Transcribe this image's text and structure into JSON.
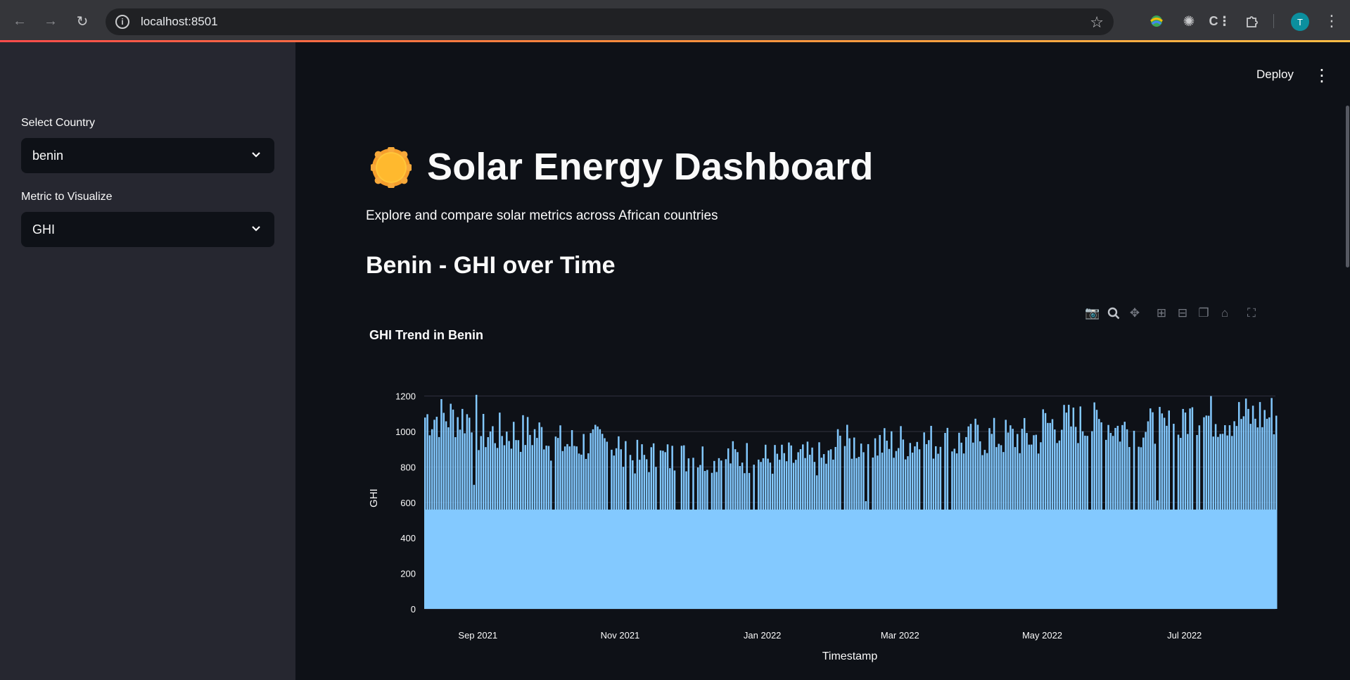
{
  "browser": {
    "url": "localhost:8501",
    "profile_initial": "T",
    "icons": [
      "back-arrow-icon",
      "forward-arrow-icon",
      "reload-icon",
      "info-icon",
      "star-icon",
      "extension-icons",
      "puzzle-icon",
      "menu-icon"
    ]
  },
  "app": {
    "deploy_label": "Deploy",
    "menu_glyph": "⋮"
  },
  "sidebar": {
    "country_label": "Select Country",
    "country_value": "benin",
    "metric_label": "Metric to Visualize",
    "metric_value": "GHI"
  },
  "main": {
    "title": "Solar Energy Dashboard",
    "subtitle": "Explore and compare solar metrics across African countries",
    "section_heading": "Benin - GHI over Time"
  },
  "colors": {
    "bar": "#83c9ff",
    "background": "#0e1117",
    "sidebar": "#262730",
    "accent": "#ff4b4b"
  },
  "chart_data": {
    "type": "bar",
    "title": "GHI Trend in Benin",
    "xlabel": "Timestamp",
    "ylabel": "GHI",
    "ylim": [
      0,
      1250
    ],
    "yticks": [
      0,
      200,
      400,
      600,
      800,
      1000,
      1200
    ],
    "xlim": [
      "2021-08-09",
      "2022-08-09"
    ],
    "xticks": [
      {
        "date": "2021-09-01",
        "label": "Sep 2021"
      },
      {
        "date": "2021-11-01",
        "label": "Nov 2021"
      },
      {
        "date": "2022-01-01",
        "label": "Jan 2022"
      },
      {
        "date": "2022-03-01",
        "label": "Mar 2022"
      },
      {
        "date": "2022-05-01",
        "label": "May 2022"
      },
      {
        "date": "2022-07-01",
        "label": "Jul 2022"
      }
    ],
    "monthly_peak_ghi": [
      {
        "month": "2021-08",
        "peak": 1215
      },
      {
        "month": "2021-09",
        "peak": 1110
      },
      {
        "month": "2021-10",
        "peak": 1045
      },
      {
        "month": "2021-11",
        "peak": 955
      },
      {
        "month": "2021-12",
        "peak": 960
      },
      {
        "month": "2022-01",
        "peak": 945
      },
      {
        "month": "2022-02",
        "peak": 1040
      },
      {
        "month": "2022-03",
        "peak": 1055
      },
      {
        "month": "2022-04",
        "peak": 1085
      },
      {
        "month": "2022-05",
        "peak": 1170
      },
      {
        "month": "2022-06",
        "peak": 1140
      },
      {
        "month": "2022-07",
        "peak": 1215
      },
      {
        "month": "2022-08",
        "peak": 1225
      }
    ],
    "grid": true,
    "legend": "none"
  }
}
